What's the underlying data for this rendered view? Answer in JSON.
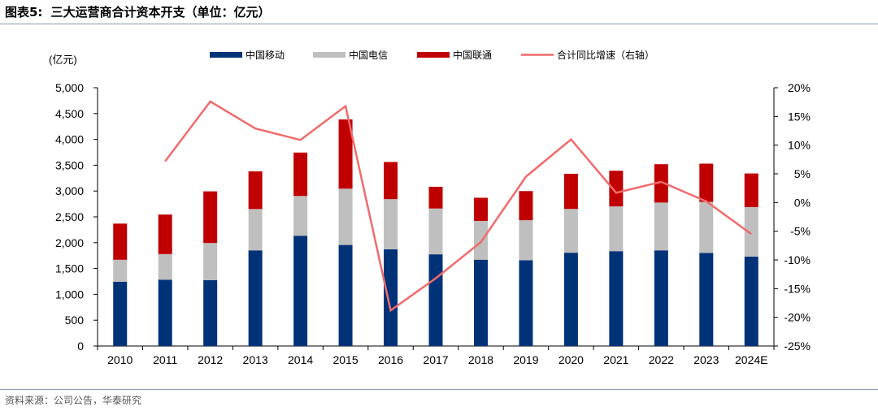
{
  "header": {
    "figure_label": "图表5:",
    "title": "三大运营商合计资本开支（单位：亿元）"
  },
  "footer": {
    "source": "资料来源：公司公告，华泰研究"
  },
  "colors": {
    "cmcc": "#003278",
    "telecom": "#bfbfbf",
    "unicom": "#c00000",
    "growth": "#f16b6b"
  },
  "chart_data": {
    "type": "bar",
    "stacked": true,
    "y_unit_label": "(亿元)",
    "categories": [
      "2010",
      "2011",
      "2012",
      "2013",
      "2014",
      "2015",
      "2016",
      "2017",
      "2018",
      "2019",
      "2020",
      "2021",
      "2022",
      "2023",
      "2024E"
    ],
    "series": [
      {
        "name": "中国移动",
        "type": "bar",
        "axis": "left",
        "values": [
          1245,
          1285,
          1274,
          1852,
          2135,
          1956,
          1873,
          1775,
          1671,
          1659,
          1806,
          1836,
          1852,
          1803,
          1730
        ]
      },
      {
        "name": "中国电信",
        "type": "bar",
        "axis": "left",
        "values": [
          425,
          495,
          720,
          800,
          770,
          1090,
          970,
          887,
          750,
          776,
          848,
          867,
          925,
          988,
          960
        ]
      },
      {
        "name": "中国联通",
        "type": "bar",
        "axis": "left",
        "values": [
          700,
          765,
          1000,
          730,
          840,
          1340,
          720,
          421,
          449,
          564,
          680,
          690,
          742,
          739,
          650
        ]
      },
      {
        "name": "合计同比增速（右轴）",
        "type": "line",
        "axis": "right",
        "values": [
          null,
          7.2,
          17.6,
          12.9,
          10.9,
          16.8,
          -18.8,
          -13.2,
          -6.9,
          4.5,
          11.0,
          1.7,
          3.6,
          0.2,
          -5.5
        ]
      }
    ],
    "y_left": {
      "min": 0,
      "max": 5000,
      "step": 500,
      "ticks": [
        "0",
        "500",
        "1,000",
        "1,500",
        "2,000",
        "2,500",
        "3,000",
        "3,500",
        "4,000",
        "4,500",
        "5,000"
      ]
    },
    "y_right": {
      "min": -25,
      "max": 20,
      "step": 5,
      "ticks": [
        "-25%",
        "-20%",
        "-15%",
        "-10%",
        "-5%",
        "0%",
        "5%",
        "10%",
        "15%",
        "20%"
      ]
    },
    "grid": false,
    "legend_position": "top"
  }
}
